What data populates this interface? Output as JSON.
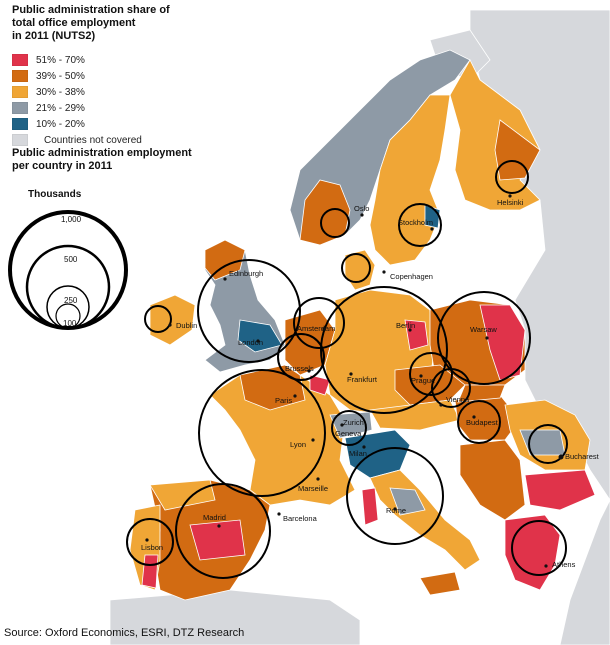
{
  "map_title": "Public administration share of total office employment in 2011 (NUTS2)",
  "map_title_lines": [
    "Public administration share of",
    "total office employment",
    "in 2011 (NUTS2)"
  ],
  "legend": [
    {
      "label": "51% - 70%",
      "color": "#e0334a"
    },
    {
      "label": "39% - 50%",
      "color": "#d26b12"
    },
    {
      "label": "30% - 38%",
      "color": "#f0a636"
    },
    {
      "label": "21% - 29%",
      "color": "#8e9aa6"
    },
    {
      "label": "10% - 20%",
      "color": "#1f6286"
    },
    {
      "label": "Countries not covered",
      "color": "#d6d8dc"
    }
  ],
  "bubble_title_lines": [
    "Public administration employment",
    "per country in 2011"
  ],
  "bubble_key": {
    "title": "Thousands",
    "values": [
      "1,000",
      "500",
      "250",
      "100"
    ]
  },
  "cities": [
    "Oslo",
    "Stockholm",
    "Helsinki",
    "Edinburgh",
    "Copenhagen",
    "Dublin",
    "London",
    "Amsterdam",
    "Berlin",
    "Warsaw",
    "Brussels",
    "Frankfurt",
    "Prague",
    "Paris",
    "Vienna",
    "Zurich",
    "Geneva",
    "Budapest",
    "Lyon",
    "Milan",
    "Bucharest",
    "Marseille",
    "Barcelona",
    "Madrid",
    "Rome",
    "Lisbon",
    "Athens"
  ],
  "source": "Source: Oxford Economics, ESRI, DTZ Research"
}
